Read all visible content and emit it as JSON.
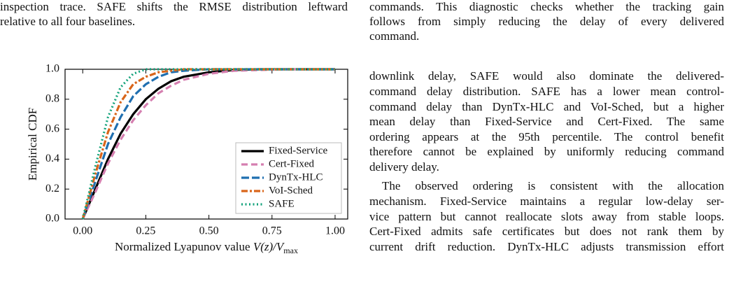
{
  "left_text": {
    "lines": [
      "inspection trace. SAFE shifts the RMSE distribution leftward",
      "relative to all four baselines."
    ]
  },
  "right_text": [
    {
      "lines": [
        "commands. This diagnostic checks whether the tracking gain",
        "follows from simply reducing the delay of every delivered",
        "command."
      ]
    },
    {
      "lines": [
        "downlink delay, SAFE would also dominate the delivered-",
        "command delay distribution. SAFE has a lower mean control-",
        "command delay than DynTx-HLC and VoI-Sched, but a higher",
        "mean delay than Fixed-Service and Cert-Fixed. The same",
        "ordering appears at the 95th percentile. The control benefit",
        "therefore cannot be explained by uniformly reducing command",
        "delivery delay."
      ]
    },
    {
      "lines": [
        "The observed ordering is consistent with the allocation",
        "mechanism. Fixed-Service maintains a regular low-delay ser-",
        "vice pattern but cannot reallocate slots away from stable loops.",
        "Cert-Fixed admits safe certificates but does not rank them by",
        "current drift reduction. DynTx-HLC adjusts transmission effort"
      ]
    }
  ],
  "chart_data": {
    "type": "line",
    "xlabel": {
      "text": "Normalized Lyapunov value ",
      "math": "V(z)/V",
      "sub": "max"
    },
    "ylabel": "Empirical CDF",
    "x": [
      0,
      0.05,
      0.1,
      0.15,
      0.2,
      0.25,
      0.3,
      0.35,
      0.4,
      0.5,
      0.6,
      0.7,
      0.8,
      1.0
    ],
    "series": [
      {
        "name": "Fixed-Service",
        "color": "#000000",
        "dash": "solid",
        "values": [
          0,
          0.2,
          0.4,
          0.57,
          0.7,
          0.8,
          0.87,
          0.92,
          0.95,
          0.98,
          0.995,
          1,
          1,
          1
        ]
      },
      {
        "name": "Cert-Fixed",
        "color": "#d57fb0",
        "dash": "dashed",
        "values": [
          0,
          0.18,
          0.37,
          0.53,
          0.66,
          0.76,
          0.84,
          0.89,
          0.93,
          0.97,
          0.99,
          0.995,
          1,
          1
        ]
      },
      {
        "name": "DynTx-HLC",
        "color": "#1f6fb0",
        "dash": "longdash",
        "values": [
          0,
          0.25,
          0.5,
          0.68,
          0.82,
          0.9,
          0.95,
          0.98,
          0.99,
          1,
          1,
          1,
          1,
          1
        ]
      },
      {
        "name": "VoI-Sched",
        "color": "#d9651a",
        "dash": "dashdot",
        "values": [
          0,
          0.3,
          0.58,
          0.78,
          0.9,
          0.95,
          0.98,
          0.99,
          1,
          1,
          1,
          1,
          1,
          1
        ]
      },
      {
        "name": "SAFE",
        "color": "#12a27a",
        "dash": "dotted",
        "values": [
          0,
          0.35,
          0.68,
          0.88,
          0.97,
          1,
          1,
          1,
          1,
          1,
          1,
          1,
          1,
          1
        ]
      }
    ],
    "xlim": [
      -0.07,
      1.05
    ],
    "ylim": [
      0,
      1
    ],
    "xticks": [
      {
        "value": 0,
        "label": "0.00"
      },
      {
        "value": 0.25,
        "label": "0.25"
      },
      {
        "value": 0.5,
        "label": "0.50"
      },
      {
        "value": 0.75,
        "label": "0.75"
      },
      {
        "value": 1,
        "label": "1.00"
      }
    ],
    "yticks": [
      {
        "value": 0,
        "label": "0.0"
      },
      {
        "value": 0.2,
        "label": "0.2"
      },
      {
        "value": 0.4,
        "label": "0.4"
      },
      {
        "value": 0.6,
        "label": "0.6"
      },
      {
        "value": 0.8,
        "label": "0.8"
      },
      {
        "value": 1,
        "label": "1.0"
      }
    ],
    "grid": false,
    "legend": "lower-right"
  }
}
